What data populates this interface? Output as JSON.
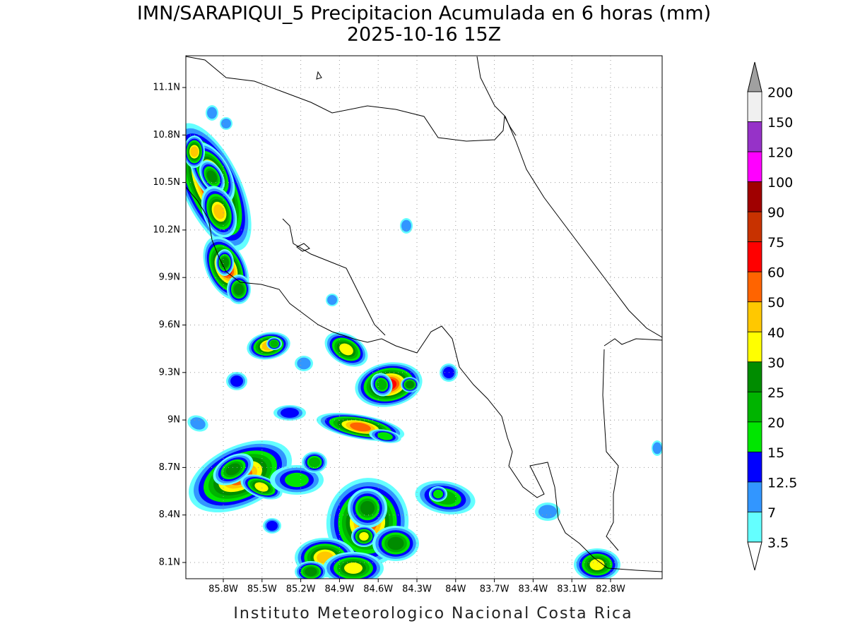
{
  "title": "IMN/SARAPIQUI_5 Precipitacion Acumulada en 6 horas (mm)",
  "subtitle": "2025-10-16 15Z",
  "footer": "Instituto Meteorologico Nacional Costa Rica",
  "map": {
    "lon_labels": [
      "85.8W",
      "85.5W",
      "85.2W",
      "84.9W",
      "84.6W",
      "84.3W",
      "84W",
      "83.7W",
      "83.4W",
      "83.1W",
      "82.8W"
    ],
    "lat_labels": [
      "11.1N",
      "10.8N",
      "10.5N",
      "10.2N",
      "9.9N",
      "9.6N",
      "9.3N",
      "9N",
      "8.7N",
      "8.4N",
      "8.1N"
    ]
  },
  "legend": {
    "levels": [
      200,
      150,
      120,
      100,
      90,
      75,
      60,
      50,
      40,
      30,
      25,
      20,
      15,
      12.5,
      7,
      3.5
    ],
    "over_color": "#a0a0a0",
    "under_color": "#ffffff",
    "colors": [
      "#f0f0f0",
      "#9632c8",
      "#ff00ff",
      "#a00000",
      "#c83200",
      "#ff0000",
      "#ff6400",
      "#ffc800",
      "#ffff00",
      "#008c00",
      "#00b400",
      "#00e600",
      "#0000ff",
      "#3296ff",
      "#64ffff"
    ]
  }
}
